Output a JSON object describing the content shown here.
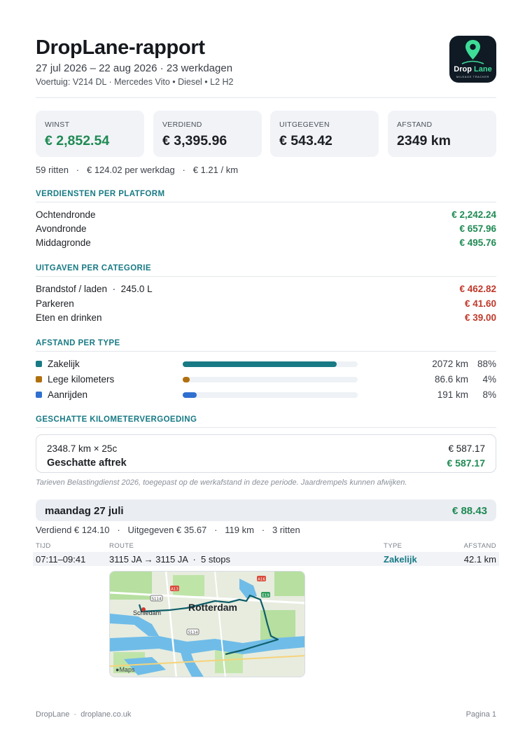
{
  "header": {
    "title": "DropLane-rapport",
    "period": "27 jul 2026 – 22 aug 2026 · 23 werkdagen",
    "vehicle": "Voertuig: V214 DL · Mercedes Vito • Diesel • L2 H2",
    "logo_name_1": "Drop",
    "logo_name_2": "Lane",
    "logo_tagline": "MILEAGE TRACKER"
  },
  "stats": [
    {
      "label": "WINST",
      "value": "€ 2,852.54"
    },
    {
      "label": "VERDIEND",
      "value": "€ 3,395.96"
    },
    {
      "label": "UITGEGEVEN",
      "value": "€ 543.42"
    },
    {
      "label": "AFSTAND",
      "value": "2349 km"
    }
  ],
  "summary": "59 ritten   ·   € 124.02 per werkdag   ·   € 1.21 / km",
  "earnings": {
    "title": "VERDIENSTEN PER PLATFORM",
    "rows": [
      {
        "label": "Ochtendronde",
        "value": "€ 2,242.24"
      },
      {
        "label": "Avondronde",
        "value": "€ 657.96"
      },
      {
        "label": "Middagronde",
        "value": "€ 495.76"
      }
    ]
  },
  "expenses": {
    "title": "UITGAVEN PER CATEGORIE",
    "rows": [
      {
        "label": "Brandstof / laden  ·  245.0 L",
        "value": "€ 462.82"
      },
      {
        "label": "Parkeren",
        "value": "€ 41.60"
      },
      {
        "label": "Eten en drinken",
        "value": "€ 39.00"
      }
    ]
  },
  "distance": {
    "title": "AFSTAND PER TYPE",
    "rows": [
      {
        "label": "Zakelijk",
        "km": "2072 km",
        "pct": "88%",
        "share": 0.88,
        "color": "#187a85"
      },
      {
        "label": "Lege kilometers",
        "km": "86.6 km",
        "pct": "4%",
        "share": 0.04,
        "color": "#b0700e"
      },
      {
        "label": "Aanrijden",
        "km": "191 km",
        "pct": "8%",
        "share": 0.08,
        "color": "#2f6fd0"
      }
    ]
  },
  "mileage": {
    "title": "GESCHATTE KILOMETERVERGOEDING",
    "calc": "2348.7 km × 25c",
    "calc_value": "€ 587.17",
    "deduction_label": "Geschatte aftrek",
    "deduction_value": "€ 587.17",
    "footnote": "Tarieven Belastingdienst 2026, toegepast op de werkafstand in deze periode. Jaardrempels kunnen afwijken."
  },
  "day": {
    "title": "maandag 27 juli",
    "total": "€ 88.43",
    "summary": "Verdiend € 124.10   ·   Uitgegeven € 35.67   ·   119 km   ·   3 ritten",
    "columns": {
      "time": "TIJD",
      "route": "ROUTE",
      "type": "TYPE",
      "distance": "AFSTAND"
    },
    "trips": [
      {
        "time": "07:11–09:41",
        "route": "3115 JA → 3115 JA  ·  5 stops",
        "type": "Zakelijk",
        "distance": "42.1 km"
      }
    ],
    "map": {
      "city": "Rotterdam",
      "town": "Schiedam",
      "brand": "Maps",
      "road_labels": [
        "S114",
        "S114",
        "A13",
        "A16",
        "E19"
      ]
    }
  },
  "footer": {
    "left": "DropLane  ·  droplane.co.uk",
    "right": "Pagina 1"
  }
}
